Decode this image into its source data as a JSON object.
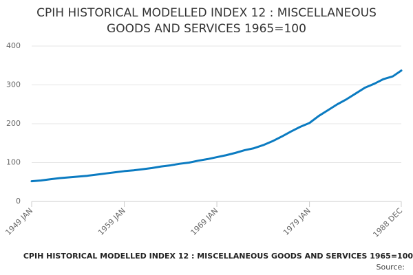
{
  "chart_data": {
    "type": "line",
    "title": "CPIH HISTORICAL MODELLED INDEX 12 : MISCELLANEOUS GOODS AND SERVICES 1965=100",
    "source": "Source:",
    "x": [
      1949,
      1950,
      1951,
      1952,
      1953,
      1954,
      1955,
      1956,
      1957,
      1958,
      1959,
      1960,
      1961,
      1962,
      1963,
      1964,
      1965,
      1966,
      1967,
      1968,
      1969,
      1970,
      1971,
      1972,
      1973,
      1974,
      1975,
      1976,
      1977,
      1978,
      1979,
      1980,
      1981,
      1982,
      1983,
      1984,
      1985,
      1986,
      1987,
      1988,
      1988.917
    ],
    "series": [
      {
        "name": "CPIH HISTORICAL MODELLED INDEX 12 : MISCELLANEOUS GOODS AND SERVICES 1965=100",
        "color": "#0b7bc1",
        "values": [
          52,
          54,
          57,
          60,
          62,
          64,
          66,
          69,
          72,
          75,
          78,
          80,
          83,
          86,
          90,
          93,
          97,
          100,
          105,
          109,
          114,
          119,
          125,
          132,
          137,
          145,
          155,
          167,
          180,
          192,
          202,
          220,
          235,
          250,
          263,
          278,
          293,
          303,
          315,
          322,
          337
        ]
      }
    ],
    "xlim": [
      1949,
      1988.917
    ],
    "xticks": [
      {
        "value": 1949,
        "label": "1949 JAN"
      },
      {
        "value": 1959,
        "label": "1959 JAN"
      },
      {
        "value": 1969,
        "label": "1969 JAN"
      },
      {
        "value": 1979,
        "label": "1979 JAN"
      },
      {
        "value": 1988.917,
        "label": "1988 DEC"
      }
    ],
    "ylim": [
      0,
      400
    ],
    "yticks": [
      0,
      100,
      200,
      300,
      400
    ],
    "grid": true
  }
}
